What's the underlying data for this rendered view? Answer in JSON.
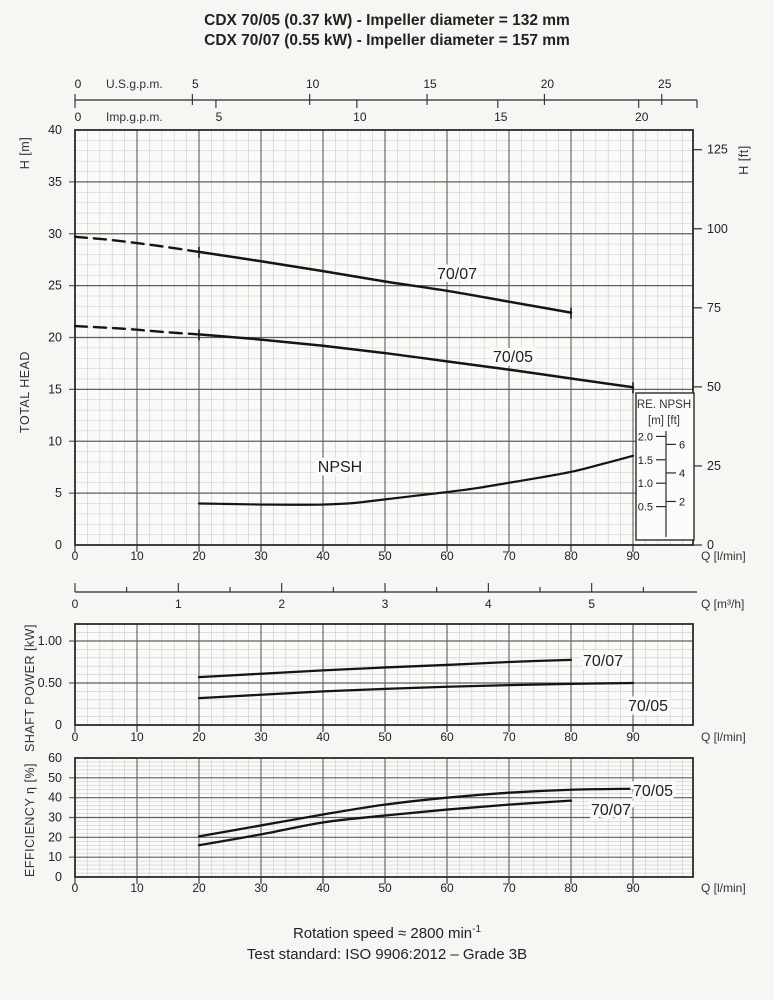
{
  "title": {
    "line1": "CDX 70/05 (0.37 kW) - Impeller diameter = 132 mm",
    "line2": "CDX 70/07 (0.55 kW) - Impeller diameter = 157 mm"
  },
  "footer": {
    "line1_main": "Rotation speed ≈ 2800 min",
    "line1_sup": "-1",
    "line2": "Test standard: ISO 9906:2012 – Grade 3B"
  },
  "colors": {
    "background": "#f6f6f3",
    "plot_bg": "#fafaf7",
    "grid_minor": "#c9ccce",
    "grid_major": "#5d6164",
    "frame": "#2b2b2b",
    "curve": "#151515",
    "text": "#222222",
    "inset_bg": "#fcfcfa"
  },
  "axes": {
    "us_gpm": {
      "label": "U.S.g.p.m.",
      "ticks": [
        0,
        5,
        10,
        15,
        20,
        25
      ]
    },
    "imp_gpm": {
      "label": "Imp.g.p.m.",
      "ticks": [
        0,
        5,
        10,
        15,
        20
      ]
    },
    "q_lmin": {
      "label": "Q [l/min]",
      "ticks": [
        0,
        10,
        20,
        30,
        40,
        50,
        60,
        70,
        80,
        90
      ]
    },
    "q_m3h": {
      "label": "Q [m³/h]",
      "ticks": [
        0,
        1,
        2,
        3,
        4,
        5
      ]
    },
    "head_m": {
      "unit": "H [m]",
      "title": "TOTAL HEAD",
      "ticks": [
        0,
        5,
        10,
        15,
        20,
        25,
        30,
        35,
        40
      ]
    },
    "head_ft": {
      "unit": "H [ft]",
      "ticks": [
        0,
        25,
        50,
        75,
        100,
        125
      ]
    },
    "power": {
      "title": "SHAFT POWER  [kW]",
      "tick_labels": [
        "0",
        "0.50",
        "1.00"
      ],
      "tick_values": [
        0,
        0.5,
        1.0
      ]
    },
    "eff": {
      "title": "EFFICIENCY    η [%]",
      "ticks": [
        0,
        10,
        20,
        30,
        40,
        50,
        60
      ]
    },
    "npsh_inset": {
      "title": "RE. NPSH",
      "units": "[m] [ft]",
      "m_tick_labels": [
        "0.5",
        "1.0",
        "1.5",
        "2.0"
      ],
      "m_tick_values": [
        0.5,
        1.0,
        1.5,
        2.0
      ],
      "ft_ticks": [
        2,
        4,
        6
      ]
    }
  },
  "chart_data": [
    {
      "id": "total_head",
      "type": "line",
      "title": "Total head vs flow rate",
      "xlabel": "Q [l/min]",
      "ylabel": "H [m]",
      "xlim": [
        0,
        100
      ],
      "ylim": [
        0,
        40
      ],
      "alt_x_axes": [
        "U.S.g.p.m. 0-25",
        "Imp.g.p.m. 0-20",
        "Q [m³/h] 0-5"
      ],
      "right_y_axis": "H [ft] 0-125",
      "grid": true,
      "series": [
        {
          "name": "70/07",
          "q_dashed": [
            0,
            5,
            10,
            15,
            20
          ],
          "values_dashed": [
            29.7,
            29.45,
            29.1,
            28.7,
            28.25
          ],
          "q": [
            20,
            30,
            40,
            50,
            60,
            70,
            80
          ],
          "values": [
            28.25,
            27.35,
            26.4,
            25.4,
            24.5,
            23.45,
            22.4
          ]
        },
        {
          "name": "70/05",
          "q_dashed": [
            0,
            5,
            10,
            15,
            20
          ],
          "values_dashed": [
            21.1,
            20.95,
            20.75,
            20.5,
            20.3
          ],
          "q": [
            20,
            30,
            40,
            50,
            60,
            70,
            80,
            90
          ],
          "values": [
            20.3,
            19.8,
            19.2,
            18.5,
            17.7,
            16.9,
            16.05,
            15.2
          ]
        },
        {
          "name": "NPSH",
          "q": [
            20,
            25,
            30,
            35,
            40,
            45,
            50,
            55,
            60,
            65,
            70,
            75,
            80,
            85,
            90
          ],
          "values": [
            4.0,
            3.95,
            3.9,
            3.88,
            3.9,
            4.05,
            4.4,
            4.75,
            5.1,
            5.5,
            6.0,
            6.5,
            7.05,
            7.8,
            8.6
          ],
          "values_on_inset_scale_m": [
            0.55,
            0.54,
            0.53,
            0.53,
            0.53,
            0.56,
            0.62,
            0.7,
            0.78,
            0.87,
            0.97,
            1.07,
            1.18,
            1.35,
            1.55
          ]
        }
      ]
    },
    {
      "id": "shaft_power",
      "type": "line",
      "xlabel": "Q [l/min]",
      "ylabel": "SHAFT POWER [kW]",
      "xlim": [
        0,
        100
      ],
      "ylim": [
        0,
        1.2
      ],
      "grid": true,
      "series": [
        {
          "name": "70/07",
          "q": [
            20,
            30,
            40,
            50,
            60,
            70,
            80
          ],
          "values": [
            0.57,
            0.61,
            0.65,
            0.685,
            0.715,
            0.75,
            0.775
          ]
        },
        {
          "name": "70/05",
          "q": [
            20,
            30,
            40,
            50,
            60,
            70,
            80,
            90
          ],
          "values": [
            0.32,
            0.36,
            0.4,
            0.43,
            0.455,
            0.475,
            0.49,
            0.5
          ]
        }
      ]
    },
    {
      "id": "efficiency",
      "type": "line",
      "xlabel": "Q [l/min]",
      "ylabel": "EFFICIENCY η [%]",
      "xlim": [
        0,
        100
      ],
      "ylim": [
        0,
        60
      ],
      "grid": true,
      "series": [
        {
          "name": "70/05",
          "q": [
            20,
            30,
            40,
            50,
            60,
            70,
            80,
            90
          ],
          "values": [
            20.5,
            26,
            31.5,
            36.5,
            40,
            42.5,
            44,
            44.5
          ]
        },
        {
          "name": "70/07",
          "q": [
            20,
            30,
            40,
            50,
            60,
            70,
            80
          ],
          "values": [
            16,
            21.5,
            27.5,
            31,
            34,
            36.5,
            38.5
          ]
        }
      ]
    }
  ]
}
